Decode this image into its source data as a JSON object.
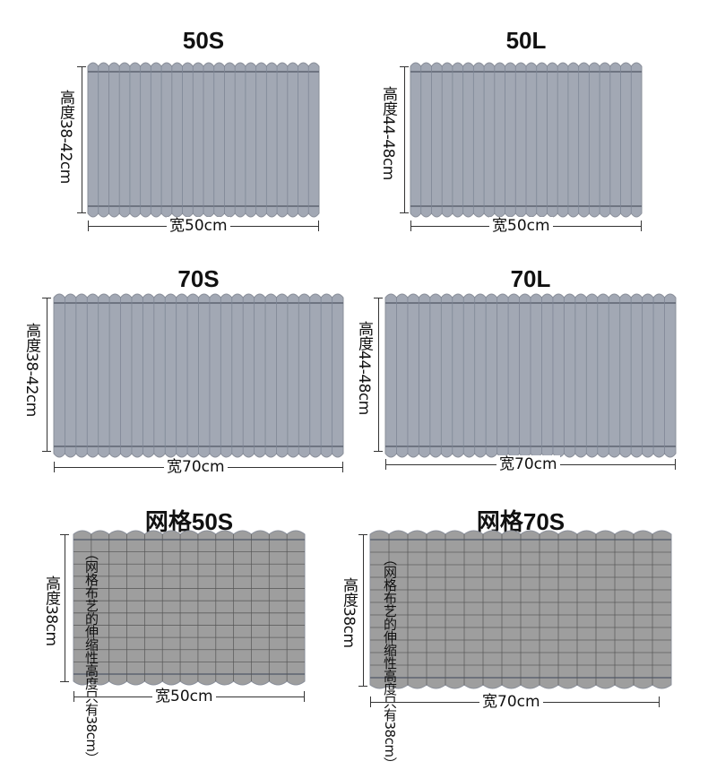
{
  "panels": [
    {
      "title": "50S",
      "height": "高度38-42cm",
      "width": "宽50cm",
      "style": "pleat"
    },
    {
      "title": "50L",
      "height": "高度44-48cm",
      "width": "宽50cm",
      "style": "pleat"
    },
    {
      "title": "70S",
      "height": "高度38-42cm",
      "width": "宽70cm",
      "style": "pleat"
    },
    {
      "title": "70L",
      "height": "高度44-48cm",
      "width": "宽70cm",
      "style": "pleat"
    },
    {
      "title": "网格50S",
      "height": "高度38cm",
      "width": "宽50cm",
      "style": "mesh",
      "note": "（网格布艺的伸缩性高度只有38cm）"
    },
    {
      "title": "网格70S",
      "height": "高度38cm",
      "width": "宽70cm",
      "style": "mesh",
      "note": "（网格布艺的伸缩性高度只有38cm）"
    }
  ],
  "colors": {
    "fabric_pleat": "#a2a8b4",
    "fabric_mesh": "#9e9e9e",
    "pleat_line": "#7d8594",
    "mesh_line": "#555555",
    "dimension_line": "#333333"
  }
}
